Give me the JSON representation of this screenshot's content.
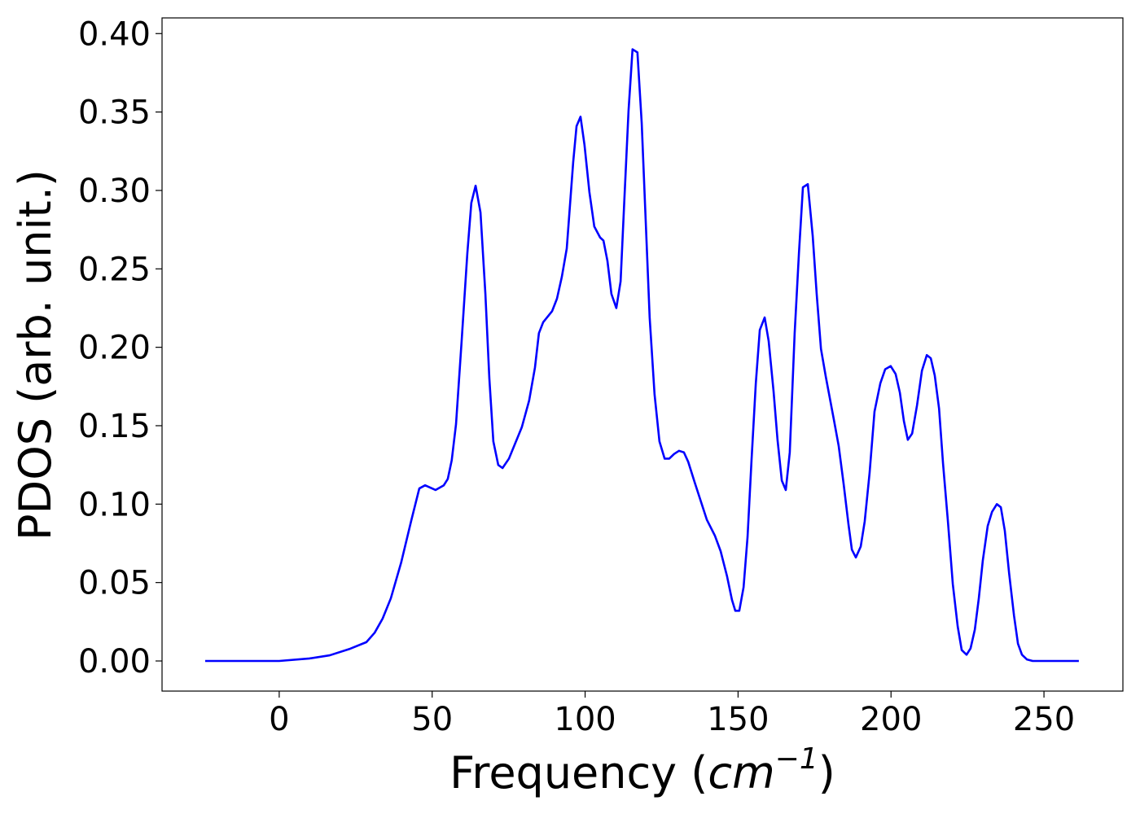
{
  "chart_data": {
    "type": "line",
    "xlabel": [
      "Frequency (",
      "cm",
      "−1",
      ")"
    ],
    "ylabel": "PDOS (arb. unit.)",
    "xlim": [
      -38.3,
      275.8
    ],
    "ylim": [
      -0.0192,
      0.41
    ],
    "xticks": [
      0,
      50,
      100,
      150,
      200,
      250
    ],
    "yticks": [
      {
        "value": 0,
        "label": "0.00"
      },
      {
        "value": 0.05,
        "label": "0.05"
      },
      {
        "value": 0.1,
        "label": "0.10"
      },
      {
        "value": 0.15,
        "label": "0.15"
      },
      {
        "value": 0.2,
        "label": "0.20"
      },
      {
        "value": 0.25,
        "label": "0.25"
      },
      {
        "value": 0.3,
        "label": "0.30"
      },
      {
        "value": 0.35,
        "label": "0.35"
      },
      {
        "value": 0.4,
        "label": "0.40"
      }
    ],
    "x": [
      -24.2,
      0,
      9.9,
      16.5,
      23.2,
      28.5,
      31.2,
      33.8,
      36.5,
      39.9,
      43.1,
      45.8,
      47.7,
      51.1,
      53.8,
      55.1,
      56.4,
      57.8,
      59.6,
      61.5,
      62.8,
      64.2,
      65.8,
      67.4,
      68.7,
      70.0,
      71.6,
      73,
      75.1,
      77.2,
      79.3,
      81.7,
      83.6,
      84.9,
      86.3,
      89.2,
      90.8,
      92.4,
      94.0,
      96.1,
      97.2,
      98.5,
      99.8,
      101.4,
      103,
      104.9,
      106,
      107.3,
      108.6,
      110.2,
      111.6,
      112.9,
      114.2,
      115.5,
      117.1,
      118.5,
      119.8,
      121.1,
      122.7,
      124.3,
      126,
      127.5,
      129.1,
      130.7,
      132.3,
      133.7,
      135.8,
      139.8,
      142.4,
      144.3,
      146.4,
      148.0,
      149.1,
      150.4,
      151.8,
      153.1,
      154.4,
      155.8,
      157.1,
      158.7,
      160,
      161.6,
      162.9,
      164.3,
      165.6,
      166.9,
      168.5,
      169.9,
      171.2,
      172.8,
      174.4,
      175.7,
      177.1,
      178.7,
      181.3,
      182.9,
      184.5,
      186.1,
      187.2,
      188.5,
      190.1,
      191.4,
      193.0,
      194.6,
      196.5,
      198.1,
      199.9,
      201.5,
      202.9,
      204.2,
      205.5,
      206.9,
      208.5,
      210.1,
      211.7,
      213,
      214.3,
      215.7,
      217,
      218.6,
      220.2,
      221.8,
      223.1,
      224.7,
      226.0,
      227.4,
      228.7,
      230.0,
      231.6,
      233.0,
      234.6,
      235.9,
      237.2,
      238.6,
      240.2,
      241.5,
      242.8,
      244.4,
      246.3,
      261.4
    ],
    "series": [
      {
        "color": "#0000ff",
        "values": [
          0,
          0,
          0.0016,
          0.0036,
          0.0078,
          0.012,
          0.018,
          0.027,
          0.04,
          0.063,
          0.089,
          0.11,
          0.112,
          0.109,
          0.112,
          0.116,
          0.128,
          0.151,
          0.203,
          0.26,
          0.292,
          0.303,
          0.286,
          0.234,
          0.18,
          0.14,
          0.125,
          0.123,
          0.129,
          0.139,
          0.149,
          0.166,
          0.187,
          0.209,
          0.216,
          0.223,
          0.231,
          0.245,
          0.263,
          0.318,
          0.341,
          0.347,
          0.329,
          0.299,
          0.277,
          0.27,
          0.268,
          0.255,
          0.234,
          0.225,
          0.242,
          0.297,
          0.351,
          0.39,
          0.388,
          0.343,
          0.281,
          0.219,
          0.17,
          0.14,
          0.129,
          0.129,
          0.132,
          0.134,
          0.133,
          0.127,
          0.114,
          0.09,
          0.08,
          0.07,
          0.054,
          0.039,
          0.032,
          0.032,
          0.047,
          0.079,
          0.128,
          0.177,
          0.211,
          0.219,
          0.204,
          0.172,
          0.141,
          0.115,
          0.109,
          0.133,
          0.209,
          0.26,
          0.302,
          0.304,
          0.271,
          0.234,
          0.199,
          0.181,
          0.154,
          0.137,
          0.113,
          0.087,
          0.071,
          0.066,
          0.073,
          0.089,
          0.12,
          0.159,
          0.177,
          0.186,
          0.188,
          0.183,
          0.171,
          0.153,
          0.141,
          0.145,
          0.163,
          0.185,
          0.195,
          0.193,
          0.182,
          0.161,
          0.126,
          0.089,
          0.049,
          0.022,
          0.007,
          0.004,
          0.008,
          0.02,
          0.04,
          0.064,
          0.086,
          0.095,
          0.1,
          0.098,
          0.083,
          0.056,
          0.029,
          0.011,
          0.004,
          0.001,
          0,
          0
        ]
      }
    ]
  }
}
